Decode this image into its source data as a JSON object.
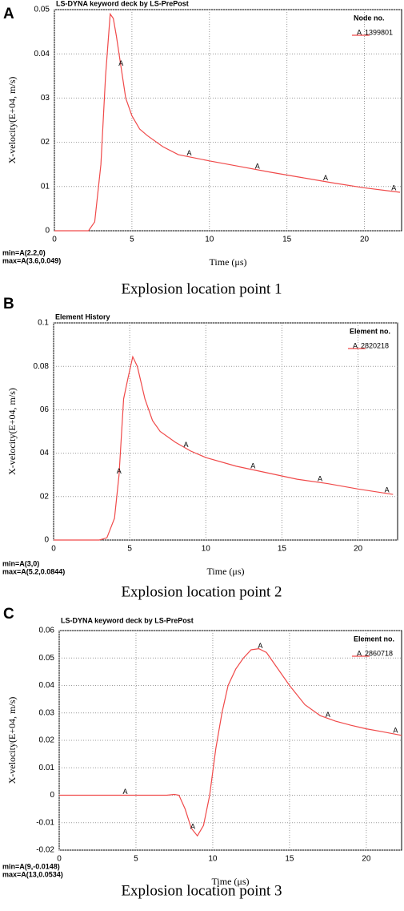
{
  "chart_data": [
    {
      "type": "line",
      "panel": "A",
      "title": "LS-DYNA keyword deck by LS-PrePost",
      "legend_title": "Node no.",
      "xlabel": "Time (μs)",
      "ylabel": "X-velocity(E+04, m/s)",
      "caption": "Explosion location point 1",
      "annotations": [
        "min=A(2.2,0)",
        "max=A(3.6,0.049)"
      ],
      "marker_label": "A",
      "marker_x": [
        4.3,
        8.7,
        13.1,
        17.5,
        21.9
      ],
      "x": [
        0,
        2.2,
        2.6,
        3.0,
        3.3,
        3.6,
        3.8,
        4.0,
        4.3,
        4.6,
        5.0,
        5.5,
        6,
        7,
        8,
        9,
        10,
        12,
        14,
        16,
        18,
        20,
        22.3
      ],
      "series": [
        {
          "name": "1399801",
          "color": "#f04a4a",
          "values": [
            0,
            0,
            0.002,
            0.015,
            0.035,
            0.049,
            0.048,
            0.044,
            0.037,
            0.03,
            0.026,
            0.023,
            0.0215,
            0.019,
            0.0172,
            0.0165,
            0.0158,
            0.0145,
            0.0132,
            0.012,
            0.0108,
            0.0097,
            0.0087
          ]
        }
      ],
      "xlim": [
        0,
        22.4
      ],
      "ylim": [
        0,
        0.05
      ],
      "xticks": [
        0,
        5,
        10,
        15,
        20
      ],
      "yticks": [
        0,
        {
          "value": 0.01,
          "label": "01"
        },
        {
          "value": 0.02,
          "label": "02"
        },
        {
          "value": 0.03,
          "label": "03"
        },
        0.04,
        0.05
      ],
      "grid": true
    },
    {
      "type": "line",
      "panel": "B",
      "title": "Element History",
      "legend_title": "Element no.",
      "xlabel": "Time (μs)",
      "ylabel": "X-velocity(E+04, m/s)",
      "caption": "Explosion location point 2",
      "annotations": [
        "min=A(3,0)",
        "max=A(5.2,0.0844)"
      ],
      "marker_label": "A",
      "marker_x": [
        4.3,
        8.7,
        13.1,
        17.5,
        21.9
      ],
      "x": [
        0,
        2.6,
        3.0,
        3.5,
        4.0,
        4.3,
        4.6,
        4.9,
        5.2,
        5.5,
        6,
        6.5,
        7,
        8,
        9,
        10,
        12,
        14,
        16,
        18,
        20,
        22.3
      ],
      "series": [
        {
          "name": "2820218",
          "color": "#f04a4a",
          "values": [
            0,
            0,
            0,
            0.001,
            0.01,
            0.03,
            0.065,
            0.075,
            0.0844,
            0.08,
            0.065,
            0.055,
            0.05,
            0.045,
            0.041,
            0.038,
            0.034,
            0.031,
            0.028,
            0.026,
            0.0235,
            0.021
          ]
        }
      ],
      "xlim": [
        0,
        22.6
      ],
      "ylim": [
        0,
        0.1
      ],
      "xticks": [
        0,
        5,
        10,
        15,
        20
      ],
      "yticks": [
        0,
        {
          "value": 0.02,
          "label": "02"
        },
        {
          "value": 0.04,
          "label": "04"
        },
        {
          "value": 0.06,
          "label": "06"
        },
        0.08,
        0.1
      ],
      "grid": true
    },
    {
      "type": "line",
      "panel": "C",
      "title": "LS-DYNA keyword deck by LS-PrePost",
      "legend_title": "Element no.",
      "xlabel": "Time (μs)",
      "ylabel": "X-velocity(E+04, m/s)",
      "caption": "Explosion location point 3",
      "annotations": [
        "min=A(9,-0.0148)",
        "max=A(13,0.0534)"
      ],
      "marker_label": "A",
      "marker_x": [
        4.3,
        8.7,
        13.1,
        17.5,
        21.9
      ],
      "x": [
        0,
        7,
        7.5,
        7.8,
        8.2,
        8.6,
        9,
        9.4,
        9.8,
        10.2,
        10.6,
        11,
        11.5,
        12,
        12.5,
        13,
        13.5,
        14,
        15,
        16,
        17,
        18,
        19,
        20,
        21,
        22.3
      ],
      "series": [
        {
          "name": "2860718",
          "color": "#f04a4a",
          "values": [
            0,
            0,
            0.0003,
            0,
            -0.005,
            -0.012,
            -0.0148,
            -0.011,
            0,
            0.017,
            0.03,
            0.04,
            0.046,
            0.05,
            0.053,
            0.0534,
            0.052,
            0.048,
            0.04,
            0.033,
            0.029,
            0.027,
            0.0255,
            0.0242,
            0.0232,
            0.0218
          ]
        }
      ],
      "xlim": [
        0,
        22.3
      ],
      "ylim": [
        -0.02,
        0.06
      ],
      "xticks": [
        0,
        5,
        10,
        15,
        20
      ],
      "yticks": [
        -0.02,
        -0.01,
        0,
        0.01,
        0.02,
        0.03,
        0.04,
        0.05,
        0.06
      ],
      "grid": true
    }
  ]
}
